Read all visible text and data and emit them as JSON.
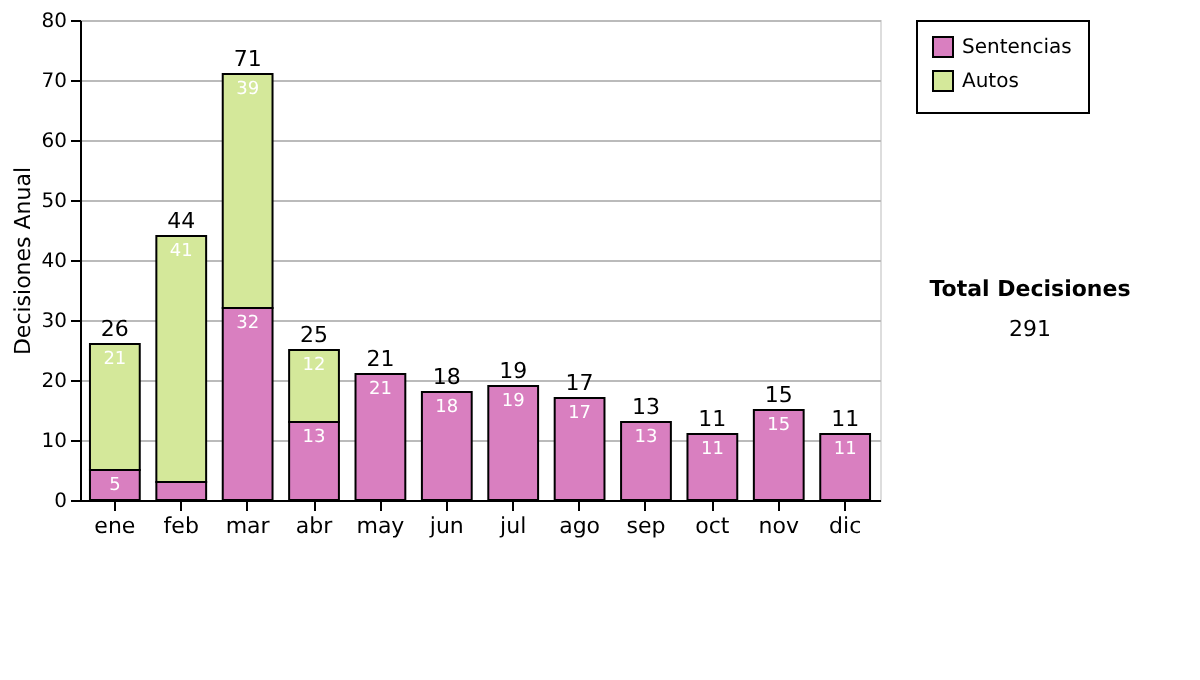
{
  "chart_data": {
    "type": "bar",
    "stacked": true,
    "ylabel": "Decisiones Anual",
    "categories": [
      "ene",
      "feb",
      "mar",
      "abr",
      "may",
      "jun",
      "jul",
      "ago",
      "sep",
      "oct",
      "nov",
      "dic"
    ],
    "series": [
      {
        "name": "Sentencias",
        "color": "#d97fc0",
        "values": [
          5,
          3,
          32,
          13,
          21,
          18,
          19,
          17,
          13,
          11,
          15,
          11
        ],
        "value_labels": [
          "5",
          null,
          "32",
          "13",
          "21",
          "18",
          "19",
          "17",
          "13",
          "11",
          "15",
          "11"
        ]
      },
      {
        "name": "Autos",
        "color": "#d4e89a",
        "values": [
          21,
          41,
          39,
          12,
          0,
          0,
          0,
          0,
          0,
          0,
          0,
          0
        ],
        "value_labels": [
          "21",
          "41",
          "39",
          "12",
          null,
          null,
          null,
          null,
          null,
          null,
          null,
          null
        ]
      }
    ],
    "totals": [
      "26",
      "44",
      "71",
      "25",
      "21",
      "18",
      "19",
      "17",
      "13",
      "11",
      "15",
      "11"
    ],
    "ylim": [
      0,
      80
    ],
    "yticks": [
      0,
      10,
      20,
      30,
      40,
      50,
      60,
      70,
      80
    ],
    "grid": "y",
    "legend": "right",
    "annotations": [
      "Total Decisiones",
      "291"
    ]
  }
}
